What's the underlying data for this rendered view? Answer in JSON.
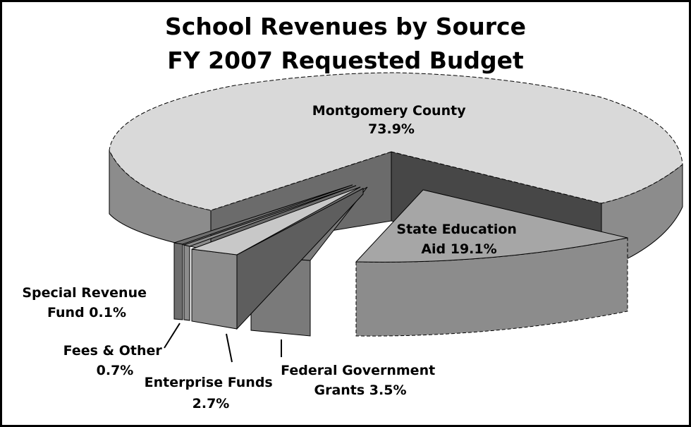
{
  "chart_data": {
    "type": "pie",
    "title": [
      "School Revenues by Source",
      "FY 2007 Requested Budget"
    ],
    "slices": [
      {
        "label_lines": [
          "Montgomery County",
          "73.9%"
        ],
        "value": 73.9,
        "color": "#d9d9d9",
        "side_color": "#8c8c8c"
      },
      {
        "label_lines": [
          "State Education",
          "Aid 19.1%"
        ],
        "value": 19.1,
        "color": "#a6a6a6",
        "side_color": "#8c8c8c"
      },
      {
        "label_lines": [
          "Federal Government",
          "Grants 3.5%"
        ],
        "value": 3.5,
        "color": "#7a7a7a",
        "side_color": "#7a7a7a"
      },
      {
        "label_lines": [
          "Enterprise Funds",
          "2.7%"
        ],
        "value": 2.7,
        "color": "#c8c8c8",
        "side_color": "#8c8c8c"
      },
      {
        "label_lines": [
          "Fees & Other",
          "0.7%"
        ],
        "value": 0.7,
        "color": "#8c8c8c",
        "side_color": "#8c8c8c"
      },
      {
        "label_lines": [
          "Special Revenue",
          "Fund 0.1%"
        ],
        "value": 0.1,
        "color": "#6e6e6e",
        "side_color": "#6e6e6e"
      }
    ],
    "style": "3d-exploded"
  }
}
